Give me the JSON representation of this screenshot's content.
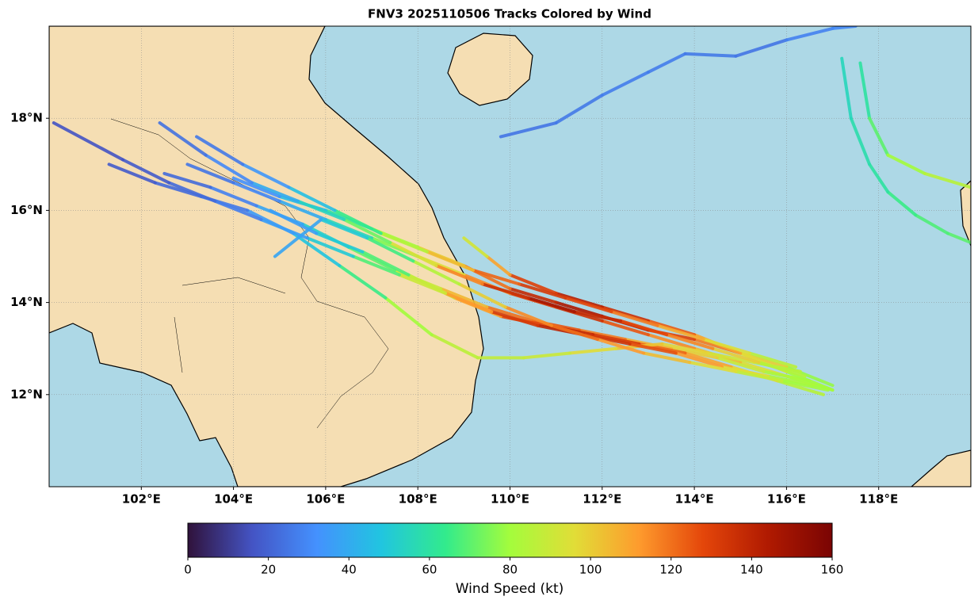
{
  "map": {
    "title": "FNV3 2025110506 Tracks Colored by Wind",
    "lonlim": [
      100,
      120
    ],
    "latlim": [
      10,
      20
    ],
    "lonticks": [
      {
        "value": 102,
        "label": "102°E"
      },
      {
        "value": 104,
        "label": "104°E"
      },
      {
        "value": 106,
        "label": "106°E"
      },
      {
        "value": 108,
        "label": "108°E"
      },
      {
        "value": 110,
        "label": "110°E"
      },
      {
        "value": 112,
        "label": "112°E"
      },
      {
        "value": 114,
        "label": "114°E"
      },
      {
        "value": 116,
        "label": "116°E"
      },
      {
        "value": 118,
        "label": "118°E"
      }
    ],
    "latticks": [
      {
        "value": 12,
        "label": "12°N"
      },
      {
        "value": 14,
        "label": "14°N"
      },
      {
        "value": 16,
        "label": "16°N"
      },
      {
        "value": 18,
        "label": "18°N"
      }
    ],
    "grid": true,
    "colorbar": {
      "label": "Wind Speed (kt)",
      "lim": [
        0,
        160
      ],
      "ticks": [
        0,
        20,
        40,
        60,
        80,
        100,
        120,
        140,
        160
      ]
    },
    "tracks": [
      {
        "lon": [
          117,
          116,
          115,
          114,
          113,
          112,
          111,
          110,
          109,
          108,
          107,
          106,
          105,
          104,
          103
        ],
        "lat": [
          12.1,
          12.4,
          12.7,
          13.0,
          13.3,
          13.6,
          13.9,
          14.2,
          14.6,
          15.0,
          15.4,
          15.8,
          16.2,
          16.6,
          17.0
        ],
        "wind": [
          80,
          95,
          105,
          115,
          125,
          135,
          130,
          115,
          95,
          75,
          55,
          40,
          30,
          25,
          20
        ]
      },
      {
        "lon": [
          117.0,
          116.0,
          115.0,
          114.0,
          113.0,
          112.0,
          111.0,
          110.0,
          109.0,
          108.0,
          107.0,
          106.0,
          105.0,
          104.0
        ],
        "lat": [
          12.2,
          12.6,
          12.9,
          13.2,
          13.4,
          13.7,
          14.0,
          14.3,
          14.8,
          15.2,
          15.6,
          16.0,
          16.3,
          16.7
        ],
        "wind": [
          78,
          100,
          118,
          130,
          140,
          145,
          138,
          120,
          100,
          80,
          60,
          45,
          32,
          24
        ]
      },
      {
        "lon": [
          116.5,
          115.5,
          114.5,
          113.5,
          112.5,
          111.5,
          110.5,
          109.5,
          108.5,
          107.5,
          106.5,
          105.5,
          104.5,
          103.5,
          102.5
        ],
        "lat": [
          12.3,
          12.5,
          12.8,
          13.0,
          13.2,
          13.4,
          13.6,
          13.9,
          14.3,
          14.7,
          15.2,
          15.7,
          16.1,
          16.5,
          16.8
        ],
        "wind": [
          82,
          90,
          100,
          108,
          118,
          125,
          120,
          105,
          90,
          70,
          52,
          38,
          28,
          22,
          18
        ]
      },
      {
        "lon": [
          116.8,
          115.8,
          114.8,
          113.8,
          112.8,
          111.8,
          110.8,
          109.8,
          108.8,
          107.8,
          106.8,
          105.8,
          104.8
        ],
        "lat": [
          12.0,
          12.3,
          12.6,
          12.9,
          13.1,
          13.3,
          13.5,
          13.7,
          14.1,
          14.6,
          15.1,
          15.5,
          16.0
        ],
        "wind": [
          85,
          98,
          110,
          122,
          132,
          138,
          128,
          110,
          88,
          68,
          50,
          36,
          28
        ]
      },
      {
        "lon": [
          116.3,
          115.3,
          114.3,
          113.3,
          112.3,
          111.3,
          110.3,
          109.3,
          108.3,
          107.3,
          106.3,
          105.3,
          104.3,
          103.3,
          102.3,
          101.3
        ],
        "lat": [
          12.5,
          12.7,
          12.9,
          13.1,
          13.0,
          12.9,
          12.8,
          12.8,
          13.3,
          14.1,
          14.8,
          15.5,
          16.0,
          16.3,
          16.6,
          17.0
        ],
        "wind": [
          85,
          92,
          98,
          102,
          96,
          90,
          88,
          86,
          80,
          65,
          48,
          35,
          26,
          22,
          18,
          16
        ]
      },
      {
        "lon": [
          117,
          116,
          115,
          114,
          113,
          112,
          111,
          110,
          109.5,
          109
        ],
        "lat": [
          12.1,
          12.5,
          12.9,
          13.3,
          13.6,
          13.9,
          14.2,
          14.6,
          15.0,
          15.4
        ],
        "wind": [
          80,
          96,
          110,
          124,
          136,
          142,
          130,
          110,
          92,
          75
        ]
      },
      {
        "lon": [
          116.2,
          115.2,
          114.2,
          113.2,
          112.2,
          111.2,
          110.2,
          109.2,
          108.2,
          107.2,
          106.2,
          105.2,
          104.2,
          103.2
        ],
        "lat": [
          12.6,
          12.9,
          13.2,
          13.5,
          13.8,
          14.1,
          14.4,
          14.7,
          15.1,
          15.5,
          16.0,
          16.5,
          17.0,
          17.6
        ],
        "wind": [
          86,
          95,
          108,
          118,
          128,
          132,
          122,
          104,
          84,
          64,
          46,
          34,
          26,
          20
        ]
      },
      {
        "lon": [
          116.6,
          115.6,
          114.6,
          113.6,
          112.6,
          111.6,
          110.6,
          109.6,
          108.6,
          107.6,
          106.6,
          105.6,
          104.6,
          103.6,
          102.6,
          101.6,
          100.1
        ],
        "lat": [
          12.2,
          12.4,
          12.6,
          12.9,
          13.1,
          13.3,
          13.5,
          13.8,
          14.2,
          14.6,
          15.0,
          15.4,
          15.8,
          16.2,
          16.6,
          17.1,
          17.9
        ],
        "wind": [
          82,
          96,
          112,
          126,
          134,
          140,
          132,
          112,
          90,
          68,
          50,
          36,
          27,
          22,
          18,
          16,
          18
        ]
      },
      {
        "lon": [
          116.9,
          115.9,
          114.9,
          113.9,
          112.9,
          111.9,
          110.9,
          109.9,
          108.9,
          107.9,
          106.9,
          105.9,
          104.9
        ],
        "lat": [
          12.1,
          12.3,
          12.5,
          12.7,
          12.9,
          13.2,
          13.5,
          13.9,
          14.4,
          14.9,
          15.4,
          15.8,
          15.0
        ],
        "wind": [
          80,
          88,
          96,
          104,
          112,
          120,
          115,
          100,
          84,
          66,
          50,
          38,
          30
        ]
      },
      {
        "lon": [
          116.4,
          115.4,
          114.4,
          113.4,
          112.4,
          111.4,
          110.4,
          109.4,
          108.4,
          107.4,
          106.4,
          105.4,
          104.4,
          103.4,
          102.4
        ],
        "lat": [
          12.4,
          12.7,
          13.0,
          13.3,
          13.6,
          13.8,
          14.1,
          14.4,
          14.8,
          15.3,
          15.8,
          16.2,
          16.6,
          17.2,
          17.9
        ],
        "wind": [
          84,
          100,
          116,
          128,
          138,
          146,
          136,
          116,
          94,
          72,
          54,
          40,
          30,
          24,
          20
        ]
      },
      {
        "lon": [
          109.8,
          111,
          112,
          113,
          113.8,
          114.9,
          116,
          117,
          117.5
        ],
        "lat": [
          17.6,
          17.9,
          18.5,
          19.0,
          19.4,
          19.35,
          19.7,
          19.95,
          20.0
        ],
        "wind": [
          25,
          26,
          27,
          27,
          26,
          25,
          28,
          30,
          32
        ]
      },
      {
        "lon": [
          120,
          119.5,
          118.8,
          118.2,
          117.8,
          117.4,
          117.2
        ],
        "lat": [
          15.3,
          15.5,
          15.9,
          16.4,
          17.0,
          18.0,
          19.3
        ],
        "wind": [
          70,
          68,
          65,
          60,
          58,
          55,
          50
        ]
      },
      {
        "lon": [
          117.6,
          117.8,
          118.2,
          119,
          120
        ],
        "lat": [
          19.2,
          18.0,
          17.2,
          16.8,
          16.5
        ],
        "wind": [
          60,
          70,
          80,
          85,
          90
        ]
      }
    ]
  }
}
